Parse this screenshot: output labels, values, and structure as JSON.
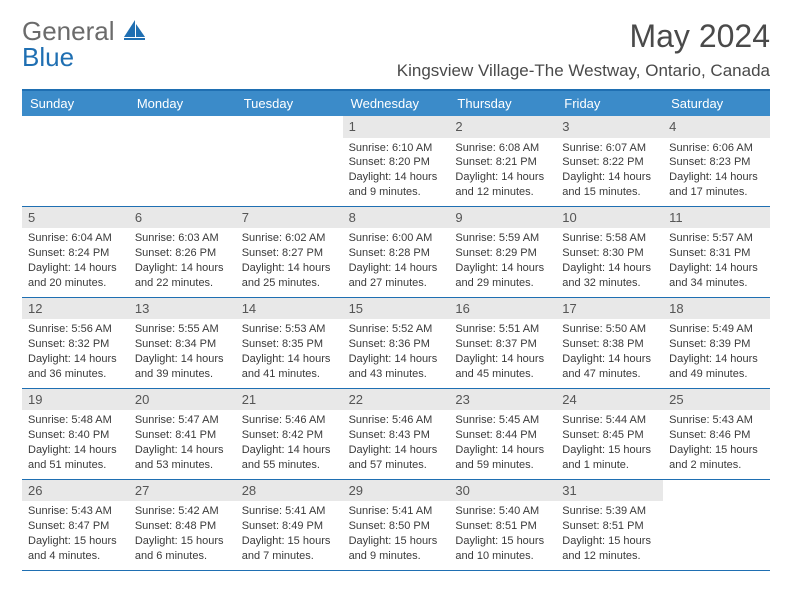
{
  "logo": {
    "text1": "General",
    "text2": "Blue"
  },
  "title": "May 2024",
  "location": "Kingsview Village-The Westway, Ontario, Canada",
  "colors": {
    "header_bg": "#3b8bc9",
    "border": "#1f6fb2",
    "daynum_bg": "#e8e8e8",
    "text": "#3a3a3a"
  },
  "day_names": [
    "Sunday",
    "Monday",
    "Tuesday",
    "Wednesday",
    "Thursday",
    "Friday",
    "Saturday"
  ],
  "weeks": [
    [
      null,
      null,
      null,
      {
        "n": "1",
        "sr": "6:10 AM",
        "ss": "8:20 PM",
        "dl": "14 hours and 9 minutes."
      },
      {
        "n": "2",
        "sr": "6:08 AM",
        "ss": "8:21 PM",
        "dl": "14 hours and 12 minutes."
      },
      {
        "n": "3",
        "sr": "6:07 AM",
        "ss": "8:22 PM",
        "dl": "14 hours and 15 minutes."
      },
      {
        "n": "4",
        "sr": "6:06 AM",
        "ss": "8:23 PM",
        "dl": "14 hours and 17 minutes."
      }
    ],
    [
      {
        "n": "5",
        "sr": "6:04 AM",
        "ss": "8:24 PM",
        "dl": "14 hours and 20 minutes."
      },
      {
        "n": "6",
        "sr": "6:03 AM",
        "ss": "8:26 PM",
        "dl": "14 hours and 22 minutes."
      },
      {
        "n": "7",
        "sr": "6:02 AM",
        "ss": "8:27 PM",
        "dl": "14 hours and 25 minutes."
      },
      {
        "n": "8",
        "sr": "6:00 AM",
        "ss": "8:28 PM",
        "dl": "14 hours and 27 minutes."
      },
      {
        "n": "9",
        "sr": "5:59 AM",
        "ss": "8:29 PM",
        "dl": "14 hours and 29 minutes."
      },
      {
        "n": "10",
        "sr": "5:58 AM",
        "ss": "8:30 PM",
        "dl": "14 hours and 32 minutes."
      },
      {
        "n": "11",
        "sr": "5:57 AM",
        "ss": "8:31 PM",
        "dl": "14 hours and 34 minutes."
      }
    ],
    [
      {
        "n": "12",
        "sr": "5:56 AM",
        "ss": "8:32 PM",
        "dl": "14 hours and 36 minutes."
      },
      {
        "n": "13",
        "sr": "5:55 AM",
        "ss": "8:34 PM",
        "dl": "14 hours and 39 minutes."
      },
      {
        "n": "14",
        "sr": "5:53 AM",
        "ss": "8:35 PM",
        "dl": "14 hours and 41 minutes."
      },
      {
        "n": "15",
        "sr": "5:52 AM",
        "ss": "8:36 PM",
        "dl": "14 hours and 43 minutes."
      },
      {
        "n": "16",
        "sr": "5:51 AM",
        "ss": "8:37 PM",
        "dl": "14 hours and 45 minutes."
      },
      {
        "n": "17",
        "sr": "5:50 AM",
        "ss": "8:38 PM",
        "dl": "14 hours and 47 minutes."
      },
      {
        "n": "18",
        "sr": "5:49 AM",
        "ss": "8:39 PM",
        "dl": "14 hours and 49 minutes."
      }
    ],
    [
      {
        "n": "19",
        "sr": "5:48 AM",
        "ss": "8:40 PM",
        "dl": "14 hours and 51 minutes."
      },
      {
        "n": "20",
        "sr": "5:47 AM",
        "ss": "8:41 PM",
        "dl": "14 hours and 53 minutes."
      },
      {
        "n": "21",
        "sr": "5:46 AM",
        "ss": "8:42 PM",
        "dl": "14 hours and 55 minutes."
      },
      {
        "n": "22",
        "sr": "5:46 AM",
        "ss": "8:43 PM",
        "dl": "14 hours and 57 minutes."
      },
      {
        "n": "23",
        "sr": "5:45 AM",
        "ss": "8:44 PM",
        "dl": "14 hours and 59 minutes."
      },
      {
        "n": "24",
        "sr": "5:44 AM",
        "ss": "8:45 PM",
        "dl": "15 hours and 1 minute."
      },
      {
        "n": "25",
        "sr": "5:43 AM",
        "ss": "8:46 PM",
        "dl": "15 hours and 2 minutes."
      }
    ],
    [
      {
        "n": "26",
        "sr": "5:43 AM",
        "ss": "8:47 PM",
        "dl": "15 hours and 4 minutes."
      },
      {
        "n": "27",
        "sr": "5:42 AM",
        "ss": "8:48 PM",
        "dl": "15 hours and 6 minutes."
      },
      {
        "n": "28",
        "sr": "5:41 AM",
        "ss": "8:49 PM",
        "dl": "15 hours and 7 minutes."
      },
      {
        "n": "29",
        "sr": "5:41 AM",
        "ss": "8:50 PM",
        "dl": "15 hours and 9 minutes."
      },
      {
        "n": "30",
        "sr": "5:40 AM",
        "ss": "8:51 PM",
        "dl": "15 hours and 10 minutes."
      },
      {
        "n": "31",
        "sr": "5:39 AM",
        "ss": "8:51 PM",
        "dl": "15 hours and 12 minutes."
      },
      null
    ]
  ],
  "labels": {
    "sunrise": "Sunrise:",
    "sunset": "Sunset:",
    "daylight": "Daylight:"
  }
}
